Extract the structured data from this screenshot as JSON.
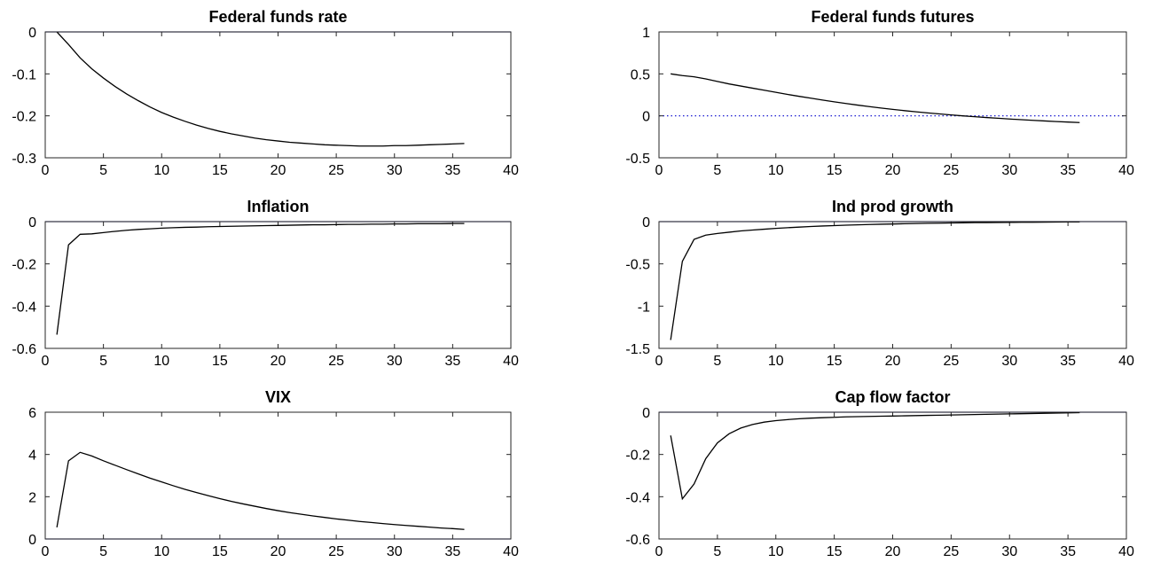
{
  "chart_data": [
    {
      "type": "line",
      "title": "Federal funds rate",
      "xlim": [
        0,
        40
      ],
      "ylim": [
        -0.3,
        0
      ],
      "xticks": [
        "0",
        "5",
        "10",
        "15",
        "20",
        "25",
        "30",
        "35",
        "40"
      ],
      "yticks": [
        "-0.3",
        "-0.2",
        "-0.1",
        "0"
      ],
      "zero_line": {
        "value": 0,
        "style": "solid",
        "color": "#7f7fd0"
      },
      "series": [
        {
          "color": "#000000",
          "x": [
            1,
            2,
            3,
            4,
            5,
            6,
            7,
            8,
            9,
            10,
            11,
            12,
            13,
            14,
            15,
            16,
            17,
            18,
            19,
            20,
            21,
            22,
            23,
            24,
            25,
            26,
            27,
            28,
            29,
            30,
            31,
            32,
            33,
            34,
            35,
            36
          ],
          "y": [
            0,
            -0.03,
            -0.062,
            -0.088,
            -0.11,
            -0.13,
            -0.148,
            -0.164,
            -0.179,
            -0.192,
            -0.203,
            -0.213,
            -0.222,
            -0.23,
            -0.237,
            -0.243,
            -0.248,
            -0.253,
            -0.257,
            -0.26,
            -0.263,
            -0.265,
            -0.267,
            -0.269,
            -0.27,
            -0.271,
            -0.272,
            -0.272,
            -0.272,
            -0.271,
            -0.271,
            -0.27,
            -0.269,
            -0.268,
            -0.267,
            -0.266
          ]
        }
      ]
    },
    {
      "type": "line",
      "title": "Federal funds futures",
      "xlim": [
        0,
        40
      ],
      "ylim": [
        -0.5,
        1
      ],
      "xticks": [
        "0",
        "5",
        "10",
        "15",
        "20",
        "25",
        "30",
        "35",
        "40"
      ],
      "yticks": [
        "-0.5",
        "0",
        "0.5",
        "1"
      ],
      "zero_line": {
        "value": 0,
        "style": "dotted",
        "color": "#0000cc"
      },
      "series": [
        {
          "color": "#000000",
          "x": [
            1,
            2,
            3,
            4,
            5,
            6,
            7,
            8,
            9,
            10,
            11,
            12,
            13,
            14,
            15,
            16,
            17,
            18,
            19,
            20,
            21,
            22,
            23,
            24,
            25,
            26,
            27,
            28,
            29,
            30,
            31,
            32,
            33,
            34,
            35,
            36
          ],
          "y": [
            0.5,
            0.48,
            0.465,
            0.44,
            0.41,
            0.38,
            0.355,
            0.33,
            0.305,
            0.28,
            0.255,
            0.232,
            0.21,
            0.188,
            0.167,
            0.147,
            0.128,
            0.11,
            0.093,
            0.077,
            0.062,
            0.048,
            0.035,
            0.023,
            0.011,
            0.0,
            -0.01,
            -0.02,
            -0.029,
            -0.038,
            -0.046,
            -0.054,
            -0.061,
            -0.068,
            -0.074,
            -0.08
          ]
        }
      ]
    },
    {
      "type": "line",
      "title": "Inflation",
      "xlim": [
        0,
        40
      ],
      "ylim": [
        -0.6,
        0
      ],
      "xticks": [
        "0",
        "5",
        "10",
        "15",
        "20",
        "25",
        "30",
        "35",
        "40"
      ],
      "yticks": [
        "-0.6",
        "-0.4",
        "-0.2",
        "0"
      ],
      "zero_line": {
        "value": 0,
        "style": "solid",
        "color": "#7f7fd0"
      },
      "series": [
        {
          "color": "#000000",
          "x": [
            1,
            2,
            3,
            4,
            5,
            6,
            7,
            8,
            9,
            10,
            11,
            12,
            13,
            14,
            15,
            16,
            17,
            18,
            19,
            20,
            21,
            22,
            23,
            24,
            25,
            26,
            27,
            28,
            29,
            30,
            31,
            32,
            33,
            34,
            35,
            36
          ],
          "y": [
            -0.535,
            -0.11,
            -0.06,
            -0.058,
            -0.052,
            -0.046,
            -0.041,
            -0.037,
            -0.034,
            -0.031,
            -0.029,
            -0.027,
            -0.026,
            -0.024,
            -0.023,
            -0.022,
            -0.021,
            -0.02,
            -0.019,
            -0.018,
            -0.017,
            -0.016,
            -0.015,
            -0.015,
            -0.014,
            -0.013,
            -0.013,
            -0.012,
            -0.012,
            -0.011,
            -0.011,
            -0.01,
            -0.01,
            -0.01,
            -0.009,
            -0.009
          ]
        }
      ]
    },
    {
      "type": "line",
      "title": "Ind prod growth",
      "xlim": [
        0,
        40
      ],
      "ylim": [
        -1.5,
        0
      ],
      "xticks": [
        "0",
        "5",
        "10",
        "15",
        "20",
        "25",
        "30",
        "35",
        "40"
      ],
      "yticks": [
        "-1.5",
        "-1",
        "-0.5",
        "0"
      ],
      "zero_line": {
        "value": 0,
        "style": "solid",
        "color": "#7f7fd0"
      },
      "series": [
        {
          "color": "#000000",
          "x": [
            1,
            2,
            3,
            4,
            5,
            6,
            7,
            8,
            9,
            10,
            11,
            12,
            13,
            14,
            15,
            16,
            17,
            18,
            19,
            20,
            21,
            22,
            23,
            24,
            25,
            26,
            27,
            28,
            29,
            30,
            31,
            32,
            33,
            34,
            35,
            36
          ],
          "y": [
            -1.4,
            -0.47,
            -0.21,
            -0.16,
            -0.14,
            -0.125,
            -0.11,
            -0.1,
            -0.09,
            -0.08,
            -0.072,
            -0.065,
            -0.058,
            -0.052,
            -0.047,
            -0.042,
            -0.038,
            -0.034,
            -0.031,
            -0.028,
            -0.025,
            -0.022,
            -0.02,
            -0.018,
            -0.016,
            -0.014,
            -0.012,
            -0.011,
            -0.01,
            -0.009,
            -0.008,
            -0.007,
            -0.006,
            -0.005,
            -0.004,
            -0.003
          ]
        }
      ]
    },
    {
      "type": "line",
      "title": "VIX",
      "xlim": [
        0,
        40
      ],
      "ylim": [
        0,
        6
      ],
      "xticks": [
        "0",
        "5",
        "10",
        "15",
        "20",
        "25",
        "30",
        "35",
        "40"
      ],
      "yticks": [
        "0",
        "2",
        "4",
        "6"
      ],
      "zero_line": {
        "value": 0,
        "style": "solid",
        "color": "#7f7fd0"
      },
      "series": [
        {
          "color": "#000000",
          "x": [
            1,
            2,
            3,
            4,
            5,
            6,
            7,
            8,
            9,
            10,
            11,
            12,
            13,
            14,
            15,
            16,
            17,
            18,
            19,
            20,
            21,
            22,
            23,
            24,
            25,
            26,
            27,
            28,
            29,
            30,
            31,
            32,
            33,
            34,
            35,
            36
          ],
          "y": [
            0.55,
            3.7,
            4.1,
            3.93,
            3.7,
            3.49,
            3.28,
            3.08,
            2.88,
            2.7,
            2.52,
            2.35,
            2.2,
            2.05,
            1.91,
            1.78,
            1.66,
            1.55,
            1.44,
            1.34,
            1.25,
            1.17,
            1.09,
            1.02,
            0.95,
            0.89,
            0.83,
            0.78,
            0.73,
            0.68,
            0.64,
            0.6,
            0.56,
            0.52,
            0.49,
            0.45
          ]
        }
      ]
    },
    {
      "type": "line",
      "title": "Cap flow factor",
      "xlim": [
        0,
        40
      ],
      "ylim": [
        -0.6,
        0
      ],
      "xticks": [
        "0",
        "5",
        "10",
        "15",
        "20",
        "25",
        "30",
        "35",
        "40"
      ],
      "yticks": [
        "-0.6",
        "-0.4",
        "-0.2",
        "0"
      ],
      "zero_line": {
        "value": 0,
        "style": "solid",
        "color": "#7f7fd0"
      },
      "series": [
        {
          "color": "#000000",
          "x": [
            1,
            2,
            3,
            4,
            5,
            6,
            7,
            8,
            9,
            10,
            11,
            12,
            13,
            14,
            15,
            16,
            17,
            18,
            19,
            20,
            21,
            22,
            23,
            24,
            25,
            26,
            27,
            28,
            29,
            30,
            31,
            32,
            33,
            34,
            35,
            36
          ],
          "y": [
            -0.11,
            -0.41,
            -0.34,
            -0.22,
            -0.145,
            -0.102,
            -0.075,
            -0.058,
            -0.047,
            -0.04,
            -0.035,
            -0.031,
            -0.028,
            -0.026,
            -0.024,
            -0.022,
            -0.021,
            -0.02,
            -0.019,
            -0.018,
            -0.017,
            -0.016,
            -0.015,
            -0.014,
            -0.013,
            -0.012,
            -0.011,
            -0.01,
            -0.009,
            -0.008,
            -0.007,
            -0.006,
            -0.005,
            -0.004,
            -0.003,
            -0.002
          ]
        }
      ]
    }
  ]
}
